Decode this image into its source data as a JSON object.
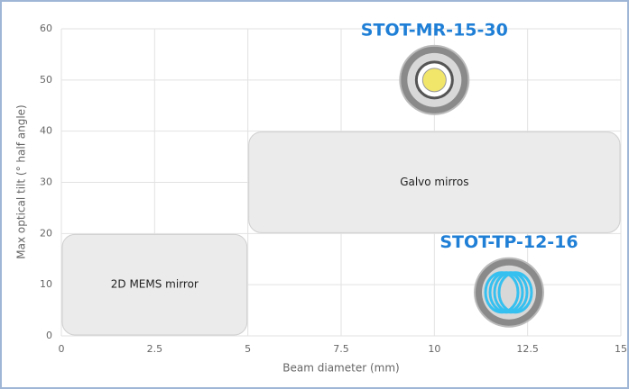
{
  "chart_data": {
    "type": "region",
    "x_label": "Beam diameter (mm)",
    "y_label": "Max optical tilt (° half angle)",
    "xlim": [
      0,
      15
    ],
    "ylim": [
      0,
      60
    ],
    "xticks": [
      0,
      2.5,
      5,
      7.5,
      10,
      12.5,
      15
    ],
    "yticks": [
      0,
      10,
      20,
      30,
      40,
      50,
      60
    ],
    "grid": true,
    "regions": [
      {
        "name": "2D MEMS mirror",
        "x": [
          0,
          5
        ],
        "y": [
          0,
          20
        ],
        "color": "#ebebeb"
      },
      {
        "name": "Galvo mirros",
        "x": [
          5,
          15
        ],
        "y": [
          20,
          40
        ],
        "color": "#ebebeb"
      }
    ],
    "points": [
      {
        "name": "STOT-MR-15-30",
        "x": 10,
        "y": 50,
        "color": "#f2e66a"
      },
      {
        "name": "STOT-TP-12-16",
        "x": 12,
        "y": 8.5,
        "color": "#35c0f0"
      }
    ],
    "label_color": "#1f7fd6"
  }
}
